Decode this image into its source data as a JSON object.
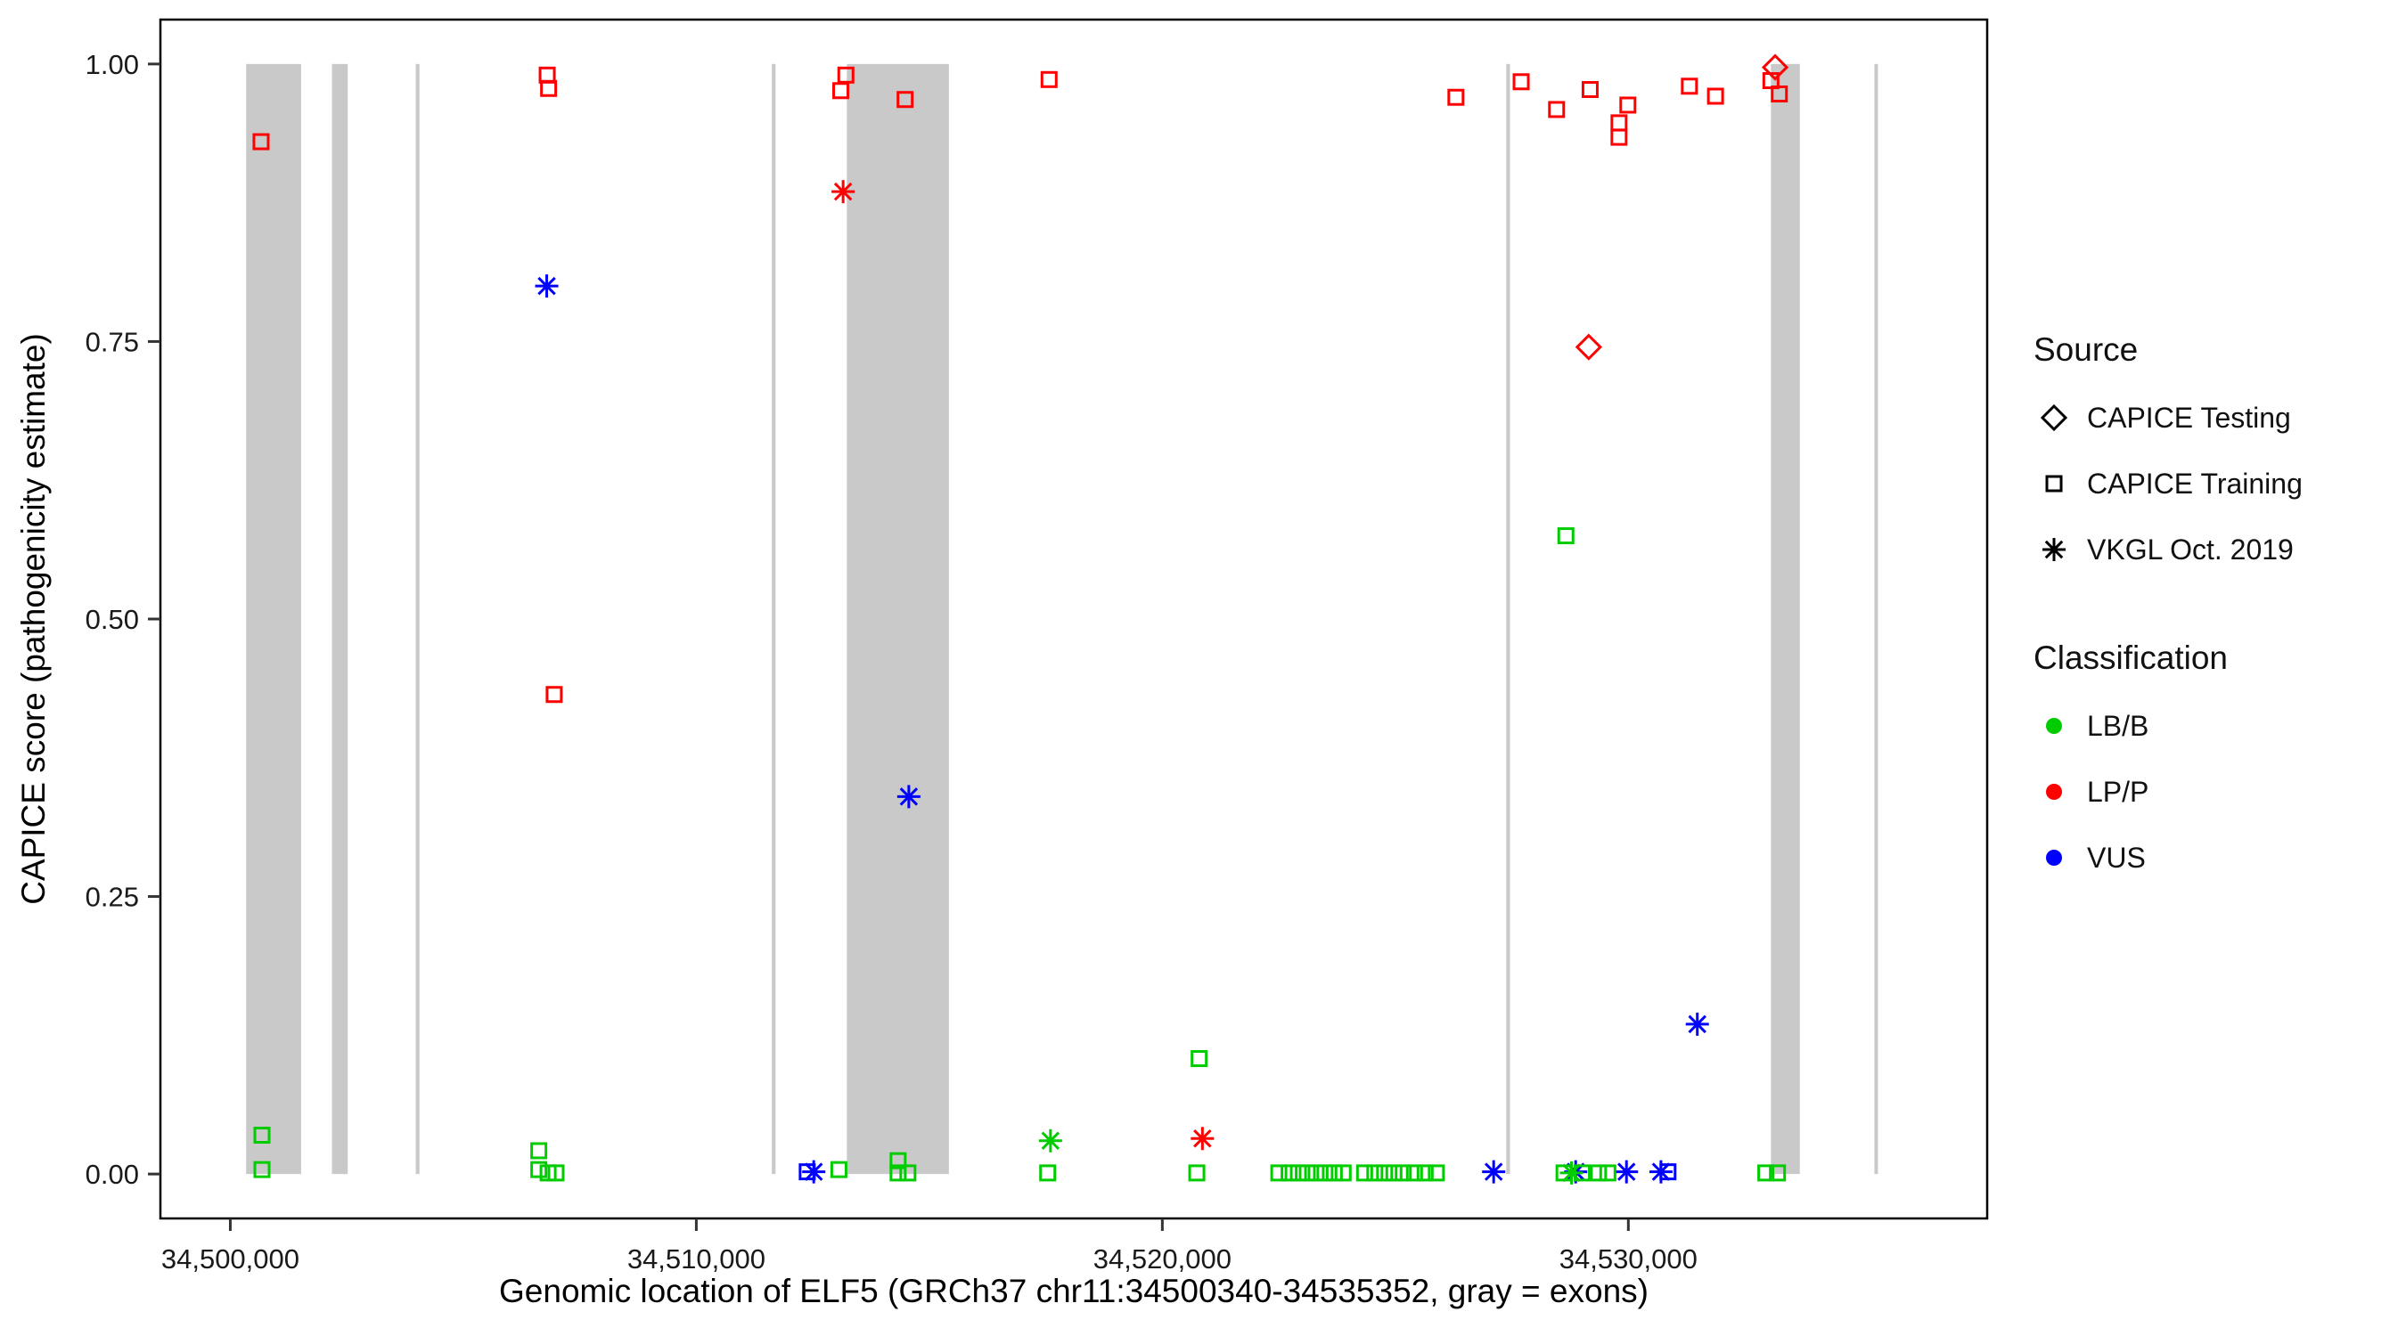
{
  "page": {
    "background": "#FFFFFF"
  },
  "chart_data": {
    "type": "scatter",
    "title": "",
    "xlabel": "Genomic location of ELF5 (GRCh37 chr11:34500340-34535352, gray = exons)",
    "ylabel": "CAPICE score (pathogenicity estimate)",
    "xlim": [
      34498500,
      34537700
    ],
    "ylim": [
      -0.04,
      1.04
    ],
    "grid": false,
    "legend_position": "right",
    "exon_color": "#C9C9C9",
    "panel_border_color": "#000000",
    "x_ticks": [
      {
        "value": 34500000,
        "label": "34,500,000"
      },
      {
        "value": 34510000,
        "label": "34,510,000"
      },
      {
        "value": 34520000,
        "label": "34,520,000"
      },
      {
        "value": 34530000,
        "label": "34,530,000"
      }
    ],
    "y_ticks": [
      {
        "value": 0.0,
        "label": "0.00"
      },
      {
        "value": 0.25,
        "label": "0.25"
      },
      {
        "value": 0.5,
        "label": "0.50"
      },
      {
        "value": 0.75,
        "label": "0.75"
      },
      {
        "value": 1.0,
        "label": "1.00"
      }
    ],
    "exons": [
      [
        34500340,
        34501520
      ],
      [
        34502180,
        34502520
      ],
      [
        34503980,
        34504060
      ],
      [
        34511620,
        34511700
      ],
      [
        34513230,
        34515420
      ],
      [
        34527380,
        34527460
      ],
      [
        34533060,
        34533680
      ],
      [
        34535280,
        34535352
      ]
    ],
    "source_shapes": {
      "testing": "diamond",
      "training": "square",
      "vkgl": "asterisk"
    },
    "class_colors": {
      "LB/B": "#00CC00",
      "LP/P": "#FF0000",
      "VUS": "#0000FF"
    },
    "points": [
      [
        34500660,
        0.93,
        "training",
        "LP/P"
      ],
      [
        34506800,
        0.99,
        "training",
        "LP/P"
      ],
      [
        34506830,
        0.978,
        "training",
        "LP/P"
      ],
      [
        34506950,
        0.432,
        "training",
        "LP/P"
      ],
      [
        34513100,
        0.976,
        "training",
        "LP/P"
      ],
      [
        34513210,
        0.99,
        "training",
        "LP/P"
      ],
      [
        34514480,
        0.968,
        "training",
        "LP/P"
      ],
      [
        34517570,
        0.986,
        "training",
        "LP/P"
      ],
      [
        34526300,
        0.97,
        "training",
        "LP/P"
      ],
      [
        34527700,
        0.984,
        "training",
        "LP/P"
      ],
      [
        34528460,
        0.959,
        "training",
        "LP/P"
      ],
      [
        34529180,
        0.977,
        "training",
        "LP/P"
      ],
      [
        34529800,
        0.947,
        "training",
        "LP/P"
      ],
      [
        34529800,
        0.934,
        "training",
        "LP/P"
      ],
      [
        34529990,
        0.963,
        "training",
        "LP/P"
      ],
      [
        34531310,
        0.98,
        "training",
        "LP/P"
      ],
      [
        34531870,
        0.971,
        "training",
        "LP/P"
      ],
      [
        34533060,
        0.985,
        "training",
        "LP/P"
      ],
      [
        34533240,
        0.973,
        "training",
        "LP/P"
      ],
      [
        34529150,
        0.745,
        "testing",
        "LP/P"
      ],
      [
        34533150,
        0.997,
        "testing",
        "LP/P"
      ],
      [
        34513150,
        0.885,
        "vkgl",
        "LP/P"
      ],
      [
        34520860,
        0.032,
        "vkgl",
        "LP/P"
      ],
      [
        34506790,
        0.8,
        "vkgl",
        "VUS"
      ],
      [
        34514560,
        0.34,
        "vkgl",
        "VUS"
      ],
      [
        34531480,
        0.135,
        "vkgl",
        "VUS"
      ],
      [
        34512520,
        0.002,
        "vkgl",
        "VUS"
      ],
      [
        34527110,
        0.002,
        "vkgl",
        "VUS"
      ],
      [
        34528870,
        0.002,
        "vkgl",
        "VUS"
      ],
      [
        34529960,
        0.002,
        "vkgl",
        "VUS"
      ],
      [
        34530700,
        0.002,
        "vkgl",
        "VUS"
      ],
      [
        34512380,
        0.002,
        "training",
        "VUS"
      ],
      [
        34530850,
        0.002,
        "training",
        "VUS"
      ],
      [
        34500680,
        0.035,
        "training",
        "LB/B"
      ],
      [
        34500680,
        0.004,
        "training",
        "LB/B"
      ],
      [
        34506620,
        0.021,
        "training",
        "LB/B"
      ],
      [
        34506620,
        0.004,
        "training",
        "LB/B"
      ],
      [
        34506820,
        0.001,
        "training",
        "LB/B"
      ],
      [
        34506990,
        0.001,
        "training",
        "LB/B"
      ],
      [
        34513060,
        0.004,
        "training",
        "LB/B"
      ],
      [
        34514330,
        0.012,
        "training",
        "LB/B"
      ],
      [
        34514330,
        0.001,
        "training",
        "LB/B"
      ],
      [
        34514540,
        0.001,
        "training",
        "LB/B"
      ],
      [
        34517540,
        0.001,
        "training",
        "LB/B"
      ],
      [
        34520790,
        0.104,
        "training",
        "LB/B"
      ],
      [
        34520740,
        0.001,
        "training",
        "LB/B"
      ],
      [
        34522500,
        0.001,
        "training",
        "LB/B"
      ],
      [
        34522720,
        0.001,
        "training",
        "LB/B"
      ],
      [
        34522920,
        0.001,
        "training",
        "LB/B"
      ],
      [
        34523110,
        0.001,
        "training",
        "LB/B"
      ],
      [
        34523300,
        0.001,
        "training",
        "LB/B"
      ],
      [
        34523490,
        0.001,
        "training",
        "LB/B"
      ],
      [
        34523690,
        0.001,
        "training",
        "LB/B"
      ],
      [
        34523880,
        0.001,
        "training",
        "LB/B"
      ],
      [
        34524340,
        0.001,
        "training",
        "LB/B"
      ],
      [
        34524560,
        0.001,
        "training",
        "LB/B"
      ],
      [
        34524770,
        0.001,
        "training",
        "LB/B"
      ],
      [
        34524970,
        0.001,
        "training",
        "LB/B"
      ],
      [
        34525170,
        0.001,
        "training",
        "LB/B"
      ],
      [
        34525410,
        0.001,
        "training",
        "LB/B"
      ],
      [
        34525640,
        0.001,
        "training",
        "LB/B"
      ],
      [
        34525880,
        0.001,
        "training",
        "LB/B"
      ],
      [
        34528620,
        0.001,
        "training",
        "LB/B"
      ],
      [
        34529010,
        0.001,
        "training",
        "LB/B"
      ],
      [
        34529360,
        0.001,
        "training",
        "LB/B"
      ],
      [
        34529560,
        0.001,
        "training",
        "LB/B"
      ],
      [
        34532950,
        0.001,
        "training",
        "LB/B"
      ],
      [
        34533200,
        0.001,
        "training",
        "LB/B"
      ],
      [
        34528660,
        0.575,
        "training",
        "LB/B"
      ],
      [
        34517600,
        0.03,
        "vkgl",
        "LB/B"
      ],
      [
        34528780,
        0.001,
        "vkgl",
        "LB/B"
      ]
    ],
    "legend": {
      "source": {
        "title": "Source",
        "items": [
          {
            "label": "CAPICE Testing",
            "shape": "diamond"
          },
          {
            "label": "CAPICE Training",
            "shape": "square"
          },
          {
            "label": "VKGL Oct. 2019",
            "shape": "asterisk"
          }
        ]
      },
      "classification": {
        "title": "Classification",
        "items": [
          {
            "label": "LB/B",
            "color": "#00CC00"
          },
          {
            "label": "LP/P",
            "color": "#FF0000"
          },
          {
            "label": "VUS",
            "color": "#0000FF"
          }
        ]
      }
    }
  }
}
